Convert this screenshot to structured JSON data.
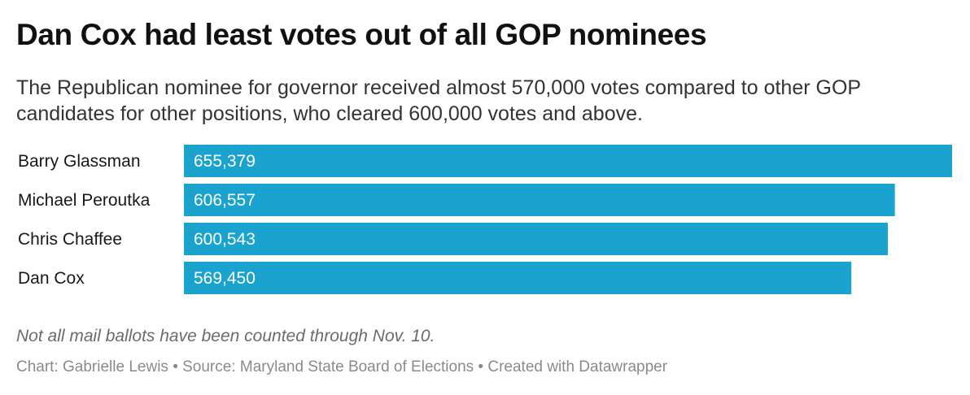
{
  "header": {
    "title": "Dan Cox had least votes out of all GOP nominees",
    "subtitle": "The Republican nominee for governor received almost 570,000 votes compared to other GOP candidates for other positions, who cleared 600,000 votes and above."
  },
  "chart_data": {
    "type": "bar",
    "orientation": "horizontal",
    "categories": [
      "Barry Glassman",
      "Michael Peroutka",
      "Chris Chaffee",
      "Dan Cox"
    ],
    "values": [
      655379,
      606557,
      600543,
      569450
    ],
    "value_labels": [
      "655,379",
      "606,557",
      "600,543",
      "569,450"
    ],
    "title": "Dan Cox had least votes out of all GOP nominees",
    "xlim": [
      0,
      655379
    ],
    "grid": false,
    "legend": "none",
    "bar_color": "#1aa3cf"
  },
  "footer": {
    "note": "Not all mail ballots have been counted through Nov. 10.",
    "credits": "Chart: Gabrielle Lewis • Source: Maryland State Board of Elections • Created with Datawrapper"
  }
}
